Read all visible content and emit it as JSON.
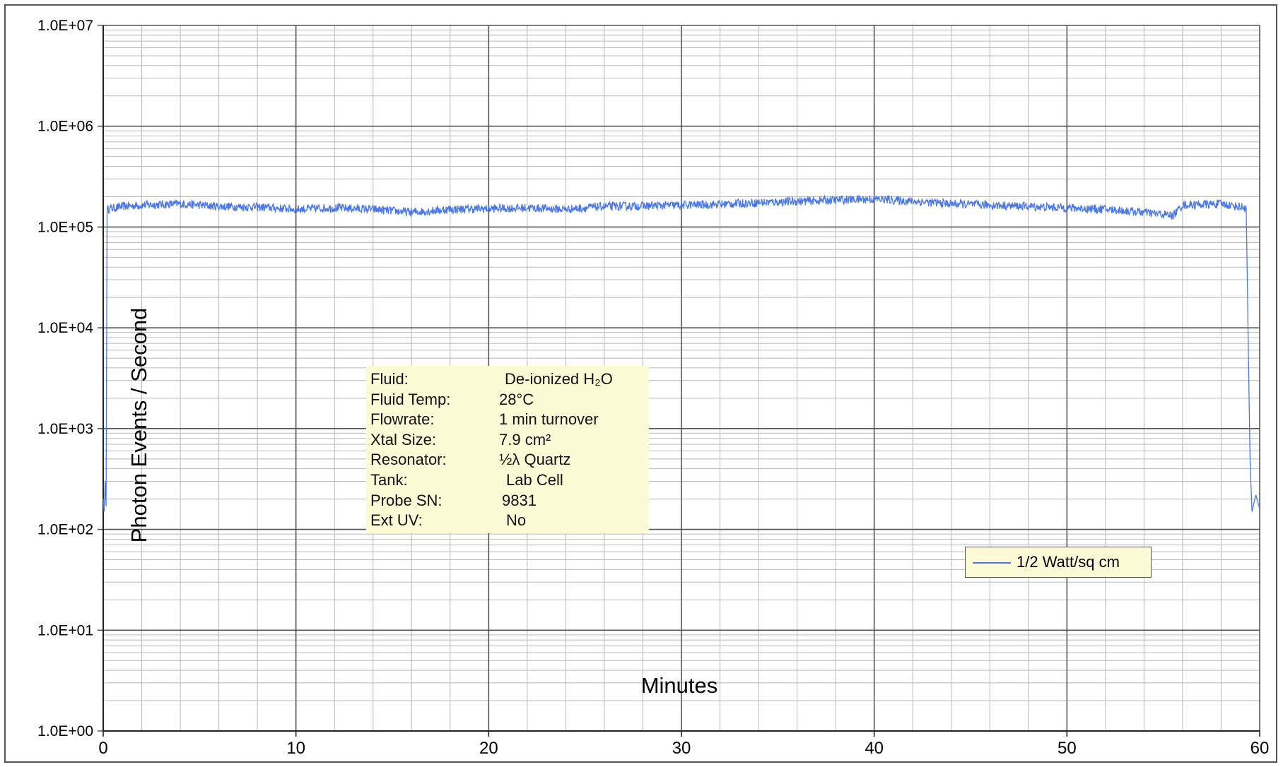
{
  "chart_data": {
    "type": "line",
    "xlabel": "Minutes",
    "ylabel": "Photon Events / Second",
    "xlim": [
      0,
      60
    ],
    "ylim": [
      1,
      10000000
    ],
    "yscale": "log",
    "x_ticks": [
      "0",
      "10",
      "20",
      "30",
      "40",
      "50",
      "60"
    ],
    "y_ticks": [
      "1.0E+00",
      "1.0E+01",
      "1.0E+02",
      "1.0E+03",
      "1.0E+04",
      "1.0E+05",
      "1.0E+06",
      "1.0E+07"
    ],
    "grid": true,
    "legend_position": "bottom-right",
    "series": [
      {
        "name": "1/2 Watt/sq cm",
        "color": "#4a78e8",
        "points": [
          [
            0.0,
            200
          ],
          [
            0.05,
            150
          ],
          [
            0.1,
            300
          ],
          [
            0.15,
            170
          ],
          [
            0.2,
            150000
          ],
          [
            1,
            160000
          ],
          [
            2,
            165000
          ],
          [
            4,
            170000
          ],
          [
            6,
            160000
          ],
          [
            8,
            158000
          ],
          [
            10,
            150000
          ],
          [
            12,
            155000
          ],
          [
            14,
            150000
          ],
          [
            16,
            140000
          ],
          [
            18,
            150000
          ],
          [
            20,
            152000
          ],
          [
            22,
            155000
          ],
          [
            24,
            150000
          ],
          [
            26,
            160000
          ],
          [
            28,
            162000
          ],
          [
            30,
            165000
          ],
          [
            32,
            168000
          ],
          [
            34,
            175000
          ],
          [
            36,
            180000
          ],
          [
            38,
            185000
          ],
          [
            40,
            190000
          ],
          [
            42,
            180000
          ],
          [
            44,
            170000
          ],
          [
            46,
            165000
          ],
          [
            48,
            160000
          ],
          [
            50,
            155000
          ],
          [
            52,
            150000
          ],
          [
            54,
            140000
          ],
          [
            55.5,
            130000
          ],
          [
            56,
            165000
          ],
          [
            58,
            170000
          ],
          [
            59.3,
            155000
          ],
          [
            59.5,
            500
          ],
          [
            59.6,
            150
          ],
          [
            59.8,
            220
          ],
          [
            60,
            160
          ]
        ]
      }
    ]
  },
  "info_box": {
    "rows": [
      {
        "label": "Fluid:",
        "value": "De-ionized H₂O"
      },
      {
        "label": "Fluid Temp:",
        "value": "28°C"
      },
      {
        "label": "Flowrate:",
        "value": "1 min turnover"
      },
      {
        "label": "Xtal Size:",
        "value": "7.9 cm²"
      },
      {
        "label": "Resonator:",
        "value": "½λ Quartz"
      },
      {
        "label": "Tank:",
        "value": "Lab Cell"
      },
      {
        "label": "Probe SN:",
        "value": "9831"
      },
      {
        "label": "Ext UV:",
        "value": "No"
      }
    ]
  },
  "legend": {
    "label": "1/2 Watt/sq cm",
    "color": "#4a78e8"
  }
}
